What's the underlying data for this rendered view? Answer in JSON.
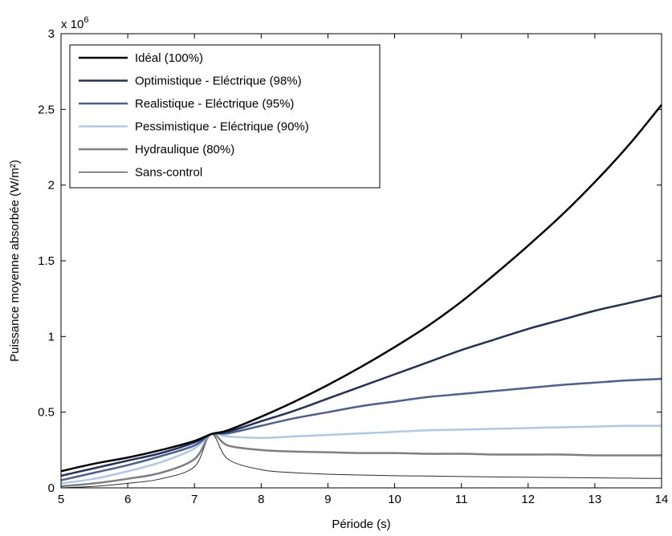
{
  "chart_data": {
    "type": "line",
    "xlabel": "Période (s)",
    "ylabel": "Puissance moyenne absorbée (W/m²)",
    "exponent_prefix": "x 10",
    "exponent_power": "6",
    "xlim": [
      5,
      14
    ],
    "ylim": [
      0,
      3
    ],
    "x_ticks": [
      5,
      6,
      7,
      8,
      9,
      10,
      11,
      12,
      13,
      14
    ],
    "x_tick_labels": [
      "5",
      "6",
      "7",
      "8",
      "9",
      "10",
      "11",
      "12",
      "13",
      "14"
    ],
    "y_ticks": [
      0,
      0.5,
      1,
      1.5,
      2,
      2.5,
      3
    ],
    "y_tick_labels": [
      "0",
      "0.5",
      "1",
      "1.5",
      "2",
      "2.5",
      "3"
    ],
    "grid": false,
    "legend_position": "top-left",
    "x": [
      5,
      5.5,
      6,
      6.5,
      7,
      7.25,
      7.5,
      8,
      8.5,
      9,
      9.5,
      10,
      10.5,
      11,
      11.5,
      12,
      12.5,
      13,
      13.5,
      14
    ],
    "series": [
      {
        "name": "Idéal (100%)",
        "color": "#000000",
        "width": 2.5,
        "values": [
          0.11,
          0.16,
          0.2,
          0.25,
          0.31,
          0.355,
          0.38,
          0.47,
          0.57,
          0.68,
          0.8,
          0.93,
          1.07,
          1.23,
          1.41,
          1.6,
          1.8,
          2.02,
          2.26,
          2.53
        ]
      },
      {
        "name": "Optimistique - Eléctrique (98%)",
        "color": "#23305a",
        "width": 2.5,
        "values": [
          0.08,
          0.13,
          0.18,
          0.23,
          0.3,
          0.355,
          0.37,
          0.44,
          0.51,
          0.59,
          0.67,
          0.75,
          0.83,
          0.91,
          0.98,
          1.05,
          1.11,
          1.17,
          1.22,
          1.27
        ]
      },
      {
        "name": "Realistique - Eléctrique (95%)",
        "color": "#4b5f93",
        "width": 2.5,
        "values": [
          0.05,
          0.1,
          0.15,
          0.21,
          0.28,
          0.355,
          0.36,
          0.41,
          0.46,
          0.5,
          0.54,
          0.57,
          0.6,
          0.62,
          0.64,
          0.66,
          0.68,
          0.695,
          0.71,
          0.72
        ]
      },
      {
        "name": "Pessimistique - Eléctrique (90%)",
        "color": "#aec8e8",
        "width": 2.5,
        "values": [
          0.03,
          0.06,
          0.11,
          0.17,
          0.26,
          0.355,
          0.34,
          0.33,
          0.34,
          0.35,
          0.36,
          0.37,
          0.38,
          0.385,
          0.39,
          0.395,
          0.4,
          0.405,
          0.41,
          0.41
        ]
      },
      {
        "name": "Hydraulique (80%)",
        "color": "#7f7f7f",
        "width": 2.5,
        "values": [
          0.01,
          0.03,
          0.06,
          0.1,
          0.19,
          0.355,
          0.28,
          0.25,
          0.24,
          0.235,
          0.23,
          0.23,
          0.225,
          0.225,
          0.22,
          0.22,
          0.22,
          0.215,
          0.215,
          0.215
        ]
      },
      {
        "name": "Sans-control",
        "color": "#2b2b2b",
        "width": 1,
        "values": [
          0.0,
          0.01,
          0.03,
          0.06,
          0.14,
          0.355,
          0.19,
          0.12,
          0.1,
          0.09,
          0.085,
          0.08,
          0.078,
          0.075,
          0.072,
          0.07,
          0.068,
          0.066,
          0.064,
          0.062
        ]
      }
    ]
  }
}
